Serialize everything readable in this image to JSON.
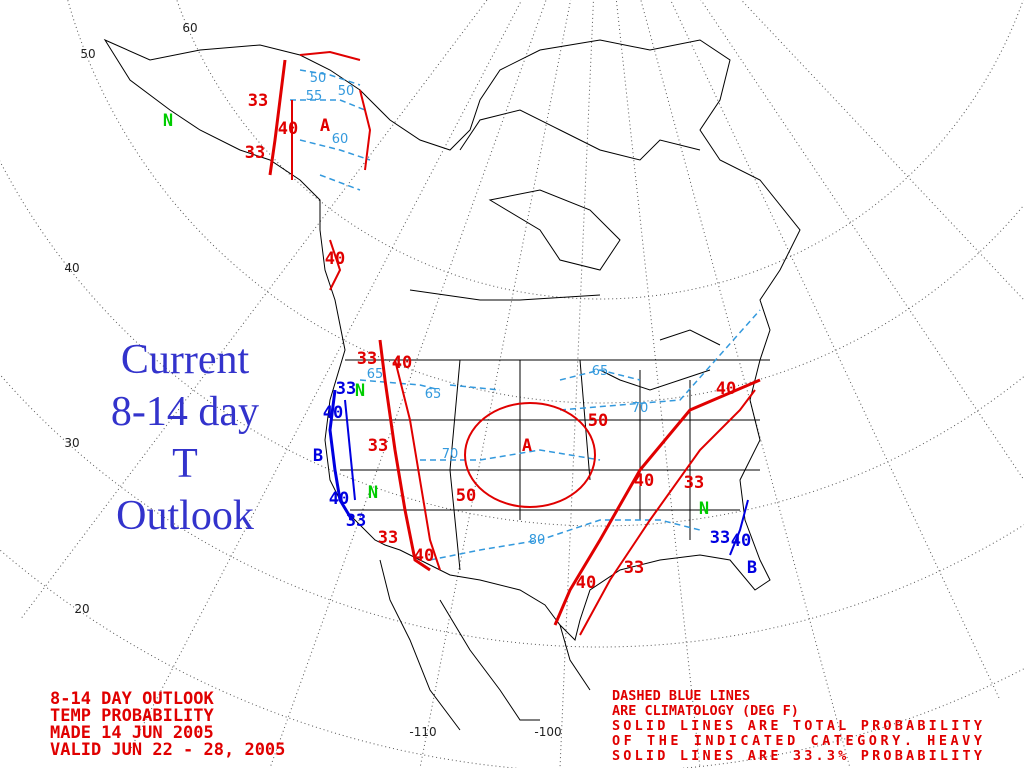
{
  "overlay_title": [
    "Current",
    "8-14 day",
    "T",
    "Outlook"
  ],
  "legend_left": [
    "8-14 DAY OUTLOOK",
    "TEMP PROBABILITY",
    "MADE   14 JUN 2005",
    "VALID   JUN 22 - 28, 2005"
  ],
  "legend_right": [
    "DASHED BLUE LINES",
    "ARE CLIMATOLOGY (DEG F)",
    "SOLID LINES ARE TOTAL PROBABILITY",
    "OF THE INDICATED CATEGORY. HEAVY",
    "SOLID LINES ARE 33.3% PROBABILITY"
  ],
  "latitude_labels": [
    "60",
    "50",
    "40",
    "30",
    "20"
  ],
  "longitude_labels": [
    "-110",
    "-100"
  ],
  "above_normal": {
    "color": "#e00000",
    "labels": [
      "33",
      "40",
      "A",
      "33",
      "40",
      "33",
      "40",
      "33",
      "A",
      "50",
      "50",
      "40",
      "40",
      "33",
      "33",
      "40",
      "40",
      "33"
    ]
  },
  "below_normal": {
    "color": "#0000e0",
    "labels": [
      "33",
      "40",
      "B",
      "40",
      "33",
      "33",
      "40",
      "B"
    ]
  },
  "near_normal": {
    "color": "#00cc00",
    "labels": [
      "N",
      "N",
      "N",
      "N"
    ]
  },
  "climatology": {
    "color": "#3399dd",
    "labels": [
      "50",
      "55",
      "50",
      "60",
      "65",
      "65",
      "70",
      "70",
      "80",
      "65"
    ]
  }
}
